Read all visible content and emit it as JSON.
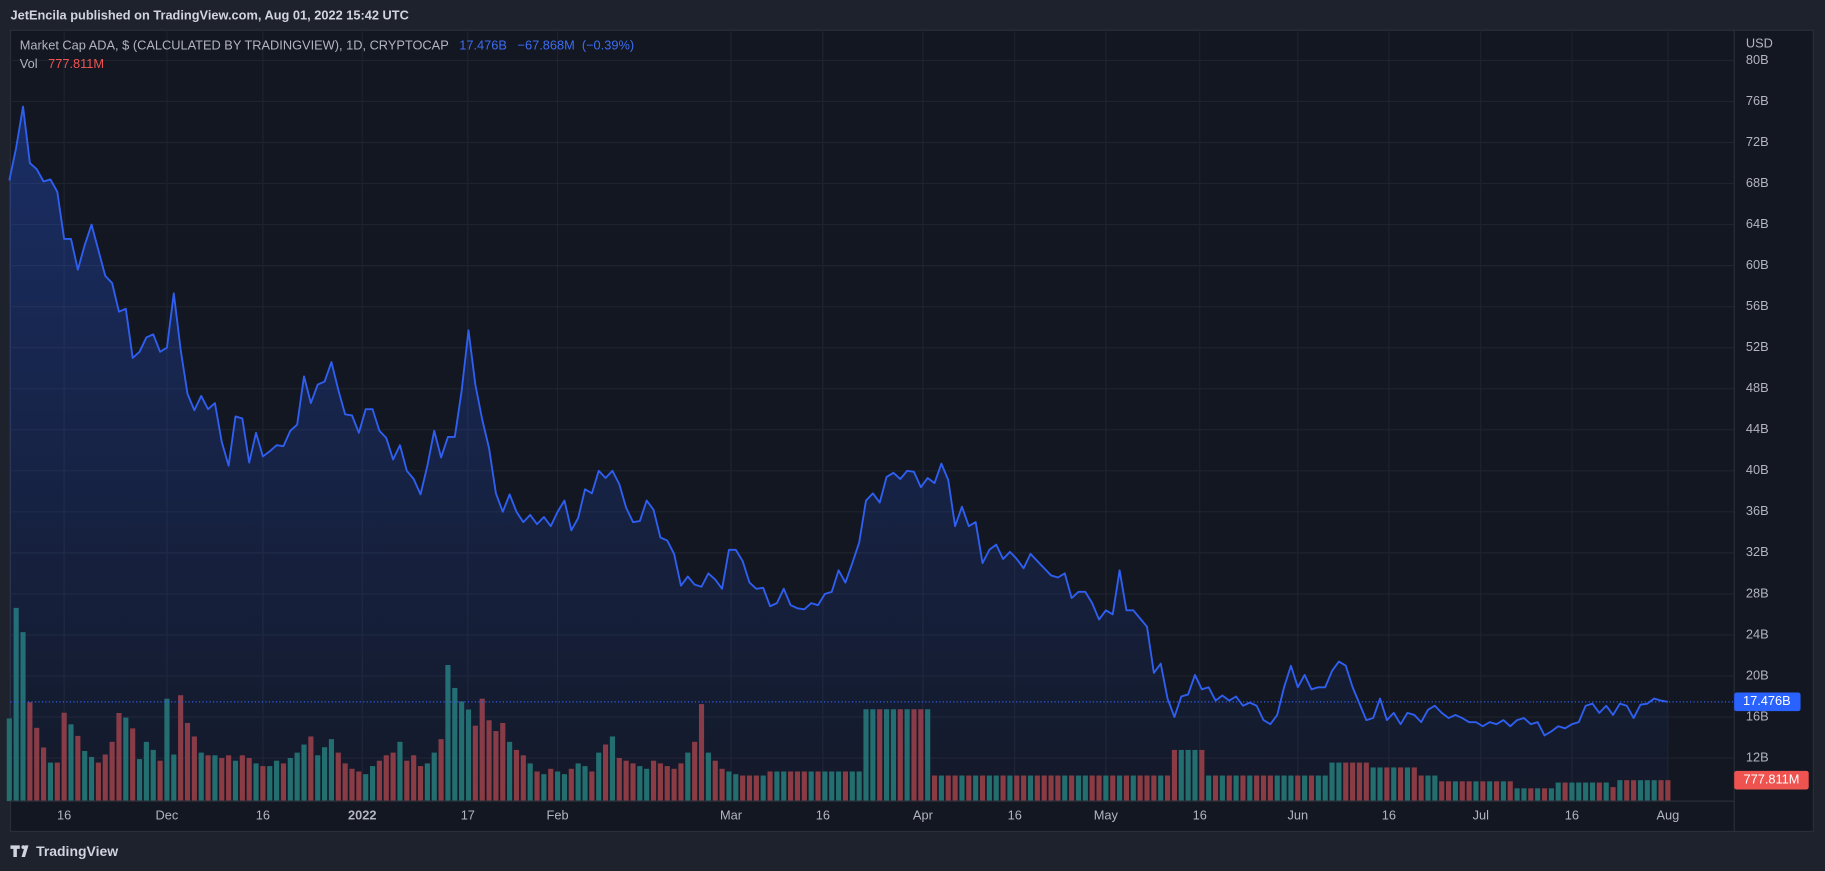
{
  "header": {
    "publisher": "JetEncila published on TradingView.com, Aug 01, 2022 15:42 UTC"
  },
  "footer": {
    "brand": "TradingView"
  },
  "chart_data": {
    "type": "line",
    "title": "Market Cap ADA, $ (CALCULATED BY TRADINGVIEW), 1D, CRYPTOCAP",
    "last_label": "17.476B",
    "change_label": "−67.868M",
    "change_pct_label": "(−0.39%)",
    "currency": "USD",
    "color": "#2f5ff0",
    "grid": true,
    "values": [
      68.3,
      71.5,
      75.5,
      70.0,
      69.4,
      68.2,
      68.4,
      67.2,
      62.6,
      62.6,
      59.6,
      62.0,
      64.0,
      61.5,
      59.0,
      58.3,
      55.5,
      55.8,
      51.0,
      51.6,
      53.0,
      53.3,
      51.6,
      52.0,
      57.3,
      51.8,
      47.5,
      45.9,
      47.3,
      46.0,
      46.6,
      42.8,
      40.5,
      45.3,
      45.1,
      40.8,
      43.7,
      41.4,
      41.9,
      42.5,
      42.4,
      43.9,
      44.5,
      49.2,
      46.6,
      48.4,
      48.7,
      50.6,
      47.9,
      45.5,
      45.4,
      43.7,
      46.0,
      46.0,
      43.9,
      43.2,
      41.1,
      42.5,
      40.0,
      39.2,
      37.7,
      40.5,
      43.9,
      41.3,
      43.3,
      43.3,
      47.8,
      53.7,
      48.4,
      45.0,
      42.2,
      37.8,
      36.0,
      37.7,
      36.0,
      35.0,
      35.7,
      34.8,
      35.5,
      34.6,
      36.0,
      37.1,
      34.2,
      35.4,
      38.2,
      37.8,
      40.0,
      39.3,
      40.0,
      38.7,
      36.4,
      35.0,
      35.1,
      37.1,
      36.2,
      33.5,
      33.2,
      31.9,
      28.8,
      29.7,
      28.9,
      28.7,
      30.0,
      29.4,
      28.5,
      32.3,
      32.3,
      31.2,
      29.1,
      28.5,
      28.6,
      26.8,
      27.1,
      28.5,
      26.9,
      26.6,
      26.5,
      27.1,
      26.9,
      28.0,
      28.2,
      30.3,
      29.1,
      31.0,
      33.0,
      37.1,
      37.8,
      36.9,
      39.4,
      39.8,
      39.2,
      40.0,
      39.9,
      38.4,
      39.3,
      38.8,
      40.7,
      39.1,
      34.6,
      36.5,
      34.6,
      35.0,
      31.0,
      32.3,
      32.8,
      31.4,
      32.1,
      31.4,
      30.5,
      31.9,
      31.2,
      30.5,
      29.8,
      29.6,
      30.0,
      27.6,
      28.2,
      28.2,
      27.1,
      25.5,
      26.4,
      26.0,
      30.3,
      26.4,
      26.4,
      25.6,
      24.8,
      20.3,
      21.2,
      17.8,
      16.0,
      18.0,
      18.2,
      20.1,
      18.7,
      18.9,
      17.6,
      18.1,
      17.6,
      18.0,
      17.1,
      17.4,
      17.1,
      15.7,
      15.3,
      16.2,
      18.9,
      21.0,
      18.9,
      20.1,
      18.7,
      18.9,
      18.9,
      20.5,
      21.4,
      21.0,
      18.9,
      17.3,
      15.7,
      15.9,
      17.8,
      15.7,
      16.4,
      15.3,
      16.4,
      16.2,
      15.5,
      16.7,
      17.1,
      16.4,
      15.9,
      16.2,
      15.9,
      15.5,
      15.5,
      15.1,
      15.5,
      15.3,
      15.7,
      15.1,
      15.7,
      15.9,
      15.3,
      15.5,
      14.2,
      14.6,
      15.1,
      14.9,
      15.3,
      15.5,
      17.1,
      17.3,
      16.4,
      17.1,
      16.2,
      17.3,
      17.1,
      15.9,
      17.2,
      17.3,
      17.8,
      17.6,
      17.476
    ],
    "xlim": [
      0,
      242
    ],
    "xticks": [
      {
        "value": 8,
        "label": "16"
      },
      {
        "value": 23,
        "label": "Dec"
      },
      {
        "value": 37,
        "label": "16"
      },
      {
        "value": 51.5,
        "label": "2022"
      },
      {
        "value": 66.9,
        "label": "17"
      },
      {
        "value": 80,
        "label": "Feb"
      },
      {
        "value": 105.3,
        "label": "Mar"
      },
      {
        "value": 118.7,
        "label": "16"
      },
      {
        "value": 133.3,
        "label": "Apr"
      },
      {
        "value": 146.7,
        "label": "16"
      },
      {
        "value": 160,
        "label": "May"
      },
      {
        "value": 173.7,
        "label": "16"
      },
      {
        "value": 188,
        "label": "Jun"
      },
      {
        "value": 201.3,
        "label": "16"
      },
      {
        "value": 214.7,
        "label": "Jul"
      },
      {
        "value": 228,
        "label": "16"
      },
      {
        "value": 242,
        "label": "Aug"
      }
    ],
    "ylim": [
      7.8,
      82.94
    ],
    "yticks": [
      {
        "value": 12,
        "label": "12B"
      },
      {
        "value": 16,
        "label": "16B"
      },
      {
        "value": 20,
        "label": "20B"
      },
      {
        "value": 24,
        "label": "24B"
      },
      {
        "value": 28,
        "label": "28B"
      },
      {
        "value": 32,
        "label": "32B"
      },
      {
        "value": 36,
        "label": "36B"
      },
      {
        "value": 40,
        "label": "40B"
      },
      {
        "value": 44,
        "label": "44B"
      },
      {
        "value": 48,
        "label": "48B"
      },
      {
        "value": 52,
        "label": "52B"
      },
      {
        "value": 56,
        "label": "56B"
      },
      {
        "value": 60,
        "label": "60B"
      },
      {
        "value": 64,
        "label": "64B"
      },
      {
        "value": 68,
        "label": "68B"
      },
      {
        "value": 72,
        "label": "72B"
      },
      {
        "value": 76,
        "label": "76B"
      },
      {
        "value": 80,
        "label": "80B"
      }
    ],
    "volume": {
      "name": "Vol",
      "last_label": "777.811M",
      "up_color": "#236f69",
      "down_color": "#8e3a3d",
      "label_color": "#ef5350",
      "ylim": [
        0,
        28600
      ],
      "values": [
        3070,
        7170,
        6270,
        3670,
        2720,
        1990,
        1430,
        1430,
        3280,
        2850,
        2420,
        1860,
        1640,
        1430,
        1730,
        2200,
        3270,
        3100,
        2700,
        1560,
        2200,
        1900,
        1500,
        3800,
        1730,
        3930,
        2900,
        2400,
        1800,
        1700,
        1700,
        1600,
        1700,
        1500,
        1700,
        1600,
        1400,
        1300,
        1300,
        1500,
        1400,
        1600,
        1800,
        2100,
        2400,
        1700,
        2000,
        2300,
        1800,
        1400,
        1200,
        1100,
        1000,
        1300,
        1500,
        1700,
        1800,
        2200,
        1500,
        1700,
        1300,
        1400,
        1800,
        2300,
        5050,
        4200,
        3700,
        3400,
        2800,
        3800,
        3000,
        2600,
        2900,
        2200,
        1900,
        1700,
        1400,
        1100,
        1000,
        1200,
        1100,
        1000,
        1200,
        1400,
        1300,
        1100,
        1800,
        2100,
        2400,
        1600,
        1500,
        1400,
        1300,
        1200,
        1500,
        1400,
        1300,
        1200,
        1400,
        1800,
        2200,
        3600,
        1800,
        1500,
        1200,
        1100,
        1000,
        950,
        950,
        950,
        950,
        1100,
        1100,
        1100,
        1100,
        1100,
        1100,
        1100,
        1100,
        1100,
        1100,
        1100,
        1100,
        1100,
        1100,
        3410,
        3410,
        3410,
        3410,
        3410,
        3410,
        3410,
        3410,
        3410,
        3410,
        950,
        950,
        950,
        950,
        950,
        950,
        950,
        950,
        950,
        950,
        950,
        950,
        950,
        950,
        950,
        950,
        950,
        950,
        950,
        950,
        950,
        950,
        950,
        950,
        950,
        950,
        950,
        950,
        950,
        950,
        950,
        950,
        950,
        950,
        950,
        1900,
        1900,
        1900,
        1900,
        1900,
        950,
        950,
        950,
        950,
        950,
        950,
        950,
        950,
        950,
        950,
        950,
        950,
        950,
        950,
        950,
        950,
        950,
        950,
        1430,
        1430,
        1430,
        1430,
        1430,
        1430,
        1250,
        1250,
        1250,
        1250,
        1250,
        1250,
        1250,
        950,
        950,
        950,
        735,
        735,
        735,
        735,
        735,
        735,
        735,
        735,
        735,
        735,
        735,
        475,
        475,
        475,
        475,
        475,
        475,
        690,
        690,
        690,
        690,
        690,
        690,
        690,
        690,
        520,
        777.811,
        777.811,
        777.811,
        777.811,
        777.811,
        777.811,
        777.811,
        777.811
      ]
    }
  }
}
